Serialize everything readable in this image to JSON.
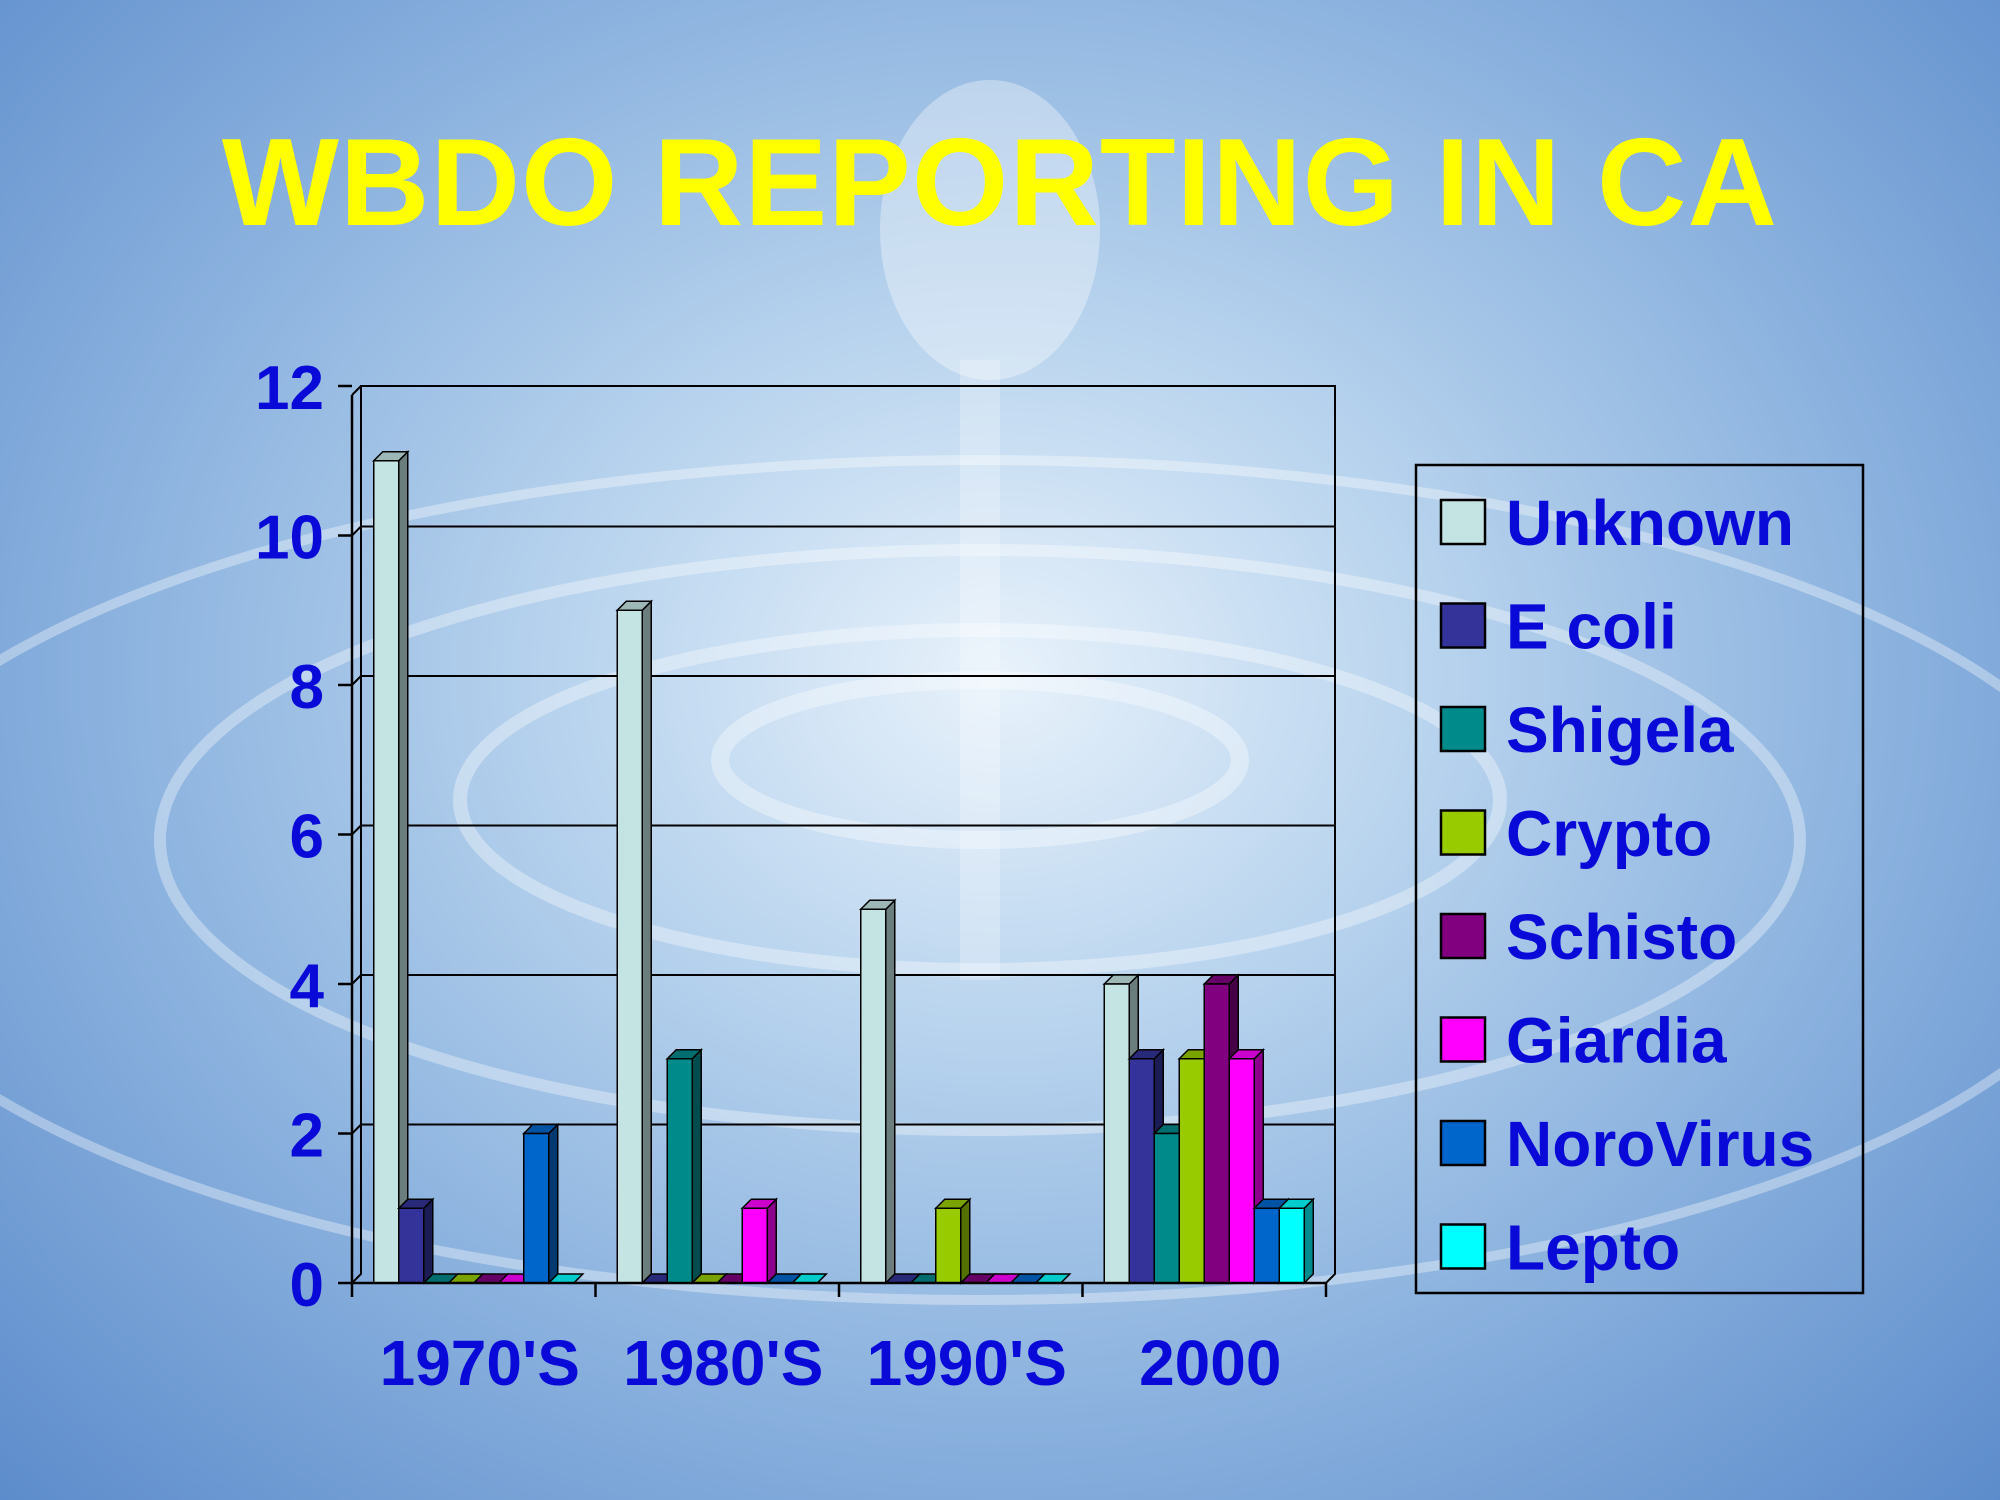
{
  "slide": {
    "title": "WBDO REPORTING IN CA"
  },
  "colors": {
    "title": "#ffff00",
    "axis_text": "#0a0ad8",
    "series": {
      "Unknown": "#c4e4e4",
      "E coli": "#333399",
      "Shigela": "#008a8a",
      "Crypto": "#99cc00",
      "Schisto": "#800080",
      "Giardia": "#ff00ff",
      "NoroVirus": "#0066cc",
      "Lepto": "#00ffff"
    }
  },
  "chart_data": {
    "type": "bar",
    "title": "WBDO REPORTING IN CA",
    "categories": [
      "1970'S",
      "1980'S",
      "1990'S",
      "2000"
    ],
    "series": [
      {
        "name": "Unknown",
        "values": [
          11,
          9,
          5,
          4
        ]
      },
      {
        "name": "E coli",
        "values": [
          1,
          0,
          0,
          3
        ]
      },
      {
        "name": "Shigela",
        "values": [
          0,
          3,
          0,
          2
        ]
      },
      {
        "name": "Crypto",
        "values": [
          0,
          0,
          1,
          3
        ]
      },
      {
        "name": "Schisto",
        "values": [
          0,
          0,
          0,
          4
        ]
      },
      {
        "name": "Giardia",
        "values": [
          0,
          1,
          0,
          3
        ]
      },
      {
        "name": "NoroVirus",
        "values": [
          2,
          0,
          0,
          1
        ]
      },
      {
        "name": "Lepto",
        "values": [
          0,
          0,
          0,
          1
        ]
      }
    ],
    "ylim": [
      0,
      12
    ],
    "yticks": [
      "0",
      "2",
      "4",
      "6",
      "8",
      "10",
      "12"
    ],
    "grid": true,
    "legend": "right"
  }
}
